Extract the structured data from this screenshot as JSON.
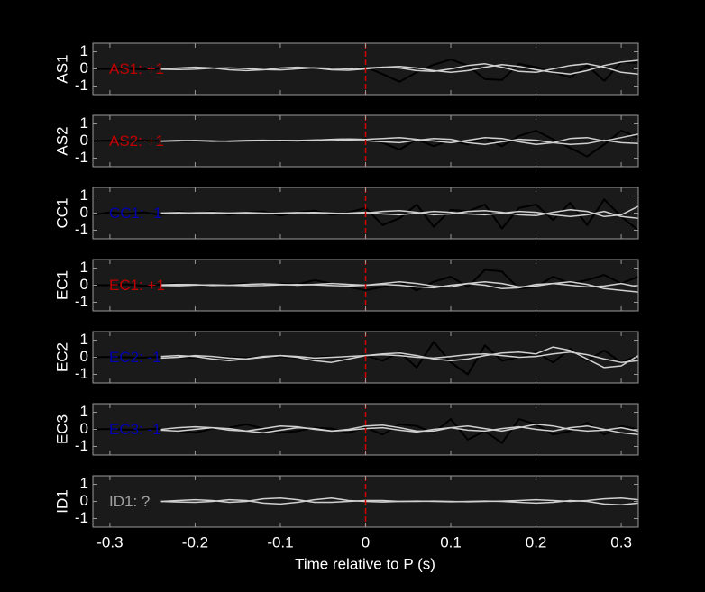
{
  "chart_data": {
    "type": "line",
    "xlabel": "Time relative to P (s)",
    "xlim": [
      -0.32,
      0.32
    ],
    "xticks": [
      -0.3,
      -0.2,
      -0.1,
      0,
      0.1,
      0.2,
      0.3
    ],
    "ylim": [
      -1.5,
      1.5
    ],
    "yticks": [
      -1,
      0,
      1
    ],
    "vline": {
      "x": 0,
      "color": "#d40000"
    },
    "x": [
      -0.32,
      -0.3,
      -0.28,
      -0.26,
      -0.24,
      -0.22,
      -0.2,
      -0.18,
      -0.16,
      -0.14,
      -0.12,
      -0.1,
      -0.08,
      -0.06,
      -0.04,
      -0.02,
      0,
      0.02,
      0.04,
      0.06,
      0.08,
      0.1,
      0.12,
      0.14,
      0.16,
      0.18,
      0.2,
      0.22,
      0.24,
      0.26,
      0.28,
      0.3,
      0.32
    ],
    "panels": [
      {
        "ylabel": "AS1",
        "label": "AS1: +1",
        "label_color": "#c00000",
        "series": [
          {
            "color": "#000000",
            "values": [
              0,
              0,
              0.02,
              -0.03,
              0.02,
              0.05,
              -0.03,
              0.04,
              0,
              -0.05,
              0.03,
              0.02,
              -0.04,
              0.03,
              0.05,
              -0.02,
              0.1,
              -0.3,
              -0.75,
              -0.2,
              0.25,
              0.55,
              0.2,
              -0.6,
              -0.65,
              0.3,
              0.1,
              -0.2,
              -0.5,
              0.2,
              -0.7,
              0.4,
              0.35
            ]
          },
          {
            "color": "#d0d0d0",
            "values": [
              null,
              null,
              null,
              null,
              0.02,
              0.05,
              0.1,
              0.05,
              -0.05,
              -0.1,
              -0.05,
              0.05,
              0.1,
              0.05,
              -0.05,
              -0.08,
              0,
              0.1,
              0.15,
              0.05,
              -0.1,
              -0.2,
              -0.1,
              0.1,
              0.25,
              0.15,
              -0.05,
              -0.2,
              -0.3,
              -0.1,
              0.2,
              0.4,
              0.5
            ]
          },
          {
            "color": "#d0d0d0",
            "values": [
              null,
              null,
              null,
              null,
              -0.02,
              -0.04,
              -0.02,
              0.04,
              0.06,
              0.02,
              -0.04,
              -0.06,
              0,
              0.06,
              0.04,
              0,
              0.05,
              0.1,
              0.05,
              -0.1,
              -0.15,
              0,
              0.2,
              0.3,
              0.1,
              -0.15,
              -0.2,
              0,
              0.2,
              0.3,
              0.1,
              -0.2,
              -0.3
            ]
          }
        ]
      },
      {
        "ylabel": "AS2",
        "label": "AS2: +1",
        "label_color": "#c00000",
        "series": [
          {
            "color": "#000000",
            "values": [
              0,
              0.02,
              -0.02,
              0.03,
              0,
              -0.03,
              0.02,
              0.04,
              0,
              -0.02,
              0.03,
              0,
              -0.03,
              0.04,
              0.1,
              0.05,
              0.15,
              -0.1,
              -0.5,
              0.1,
              -0.3,
              0.05,
              -0.2,
              0.2,
              -0.3,
              0.3,
              0.6,
              0.1,
              -0.4,
              -0.9,
              -0.2,
              0.6,
              0.2
            ]
          },
          {
            "color": "#d0d0d0",
            "values": [
              null,
              null,
              null,
              null,
              0,
              0.03,
              0.02,
              -0.02,
              0,
              0.03,
              0.05,
              0.02,
              0,
              0.05,
              0.1,
              0.12,
              0.1,
              0.15,
              0.2,
              0.1,
              0,
              -0.1,
              0.05,
              0.2,
              0.15,
              -0.05,
              -0.2,
              -0.1,
              0.15,
              0.2,
              0,
              0.2,
              0.4
            ]
          },
          {
            "color": "#d0d0d0",
            "values": [
              null,
              null,
              null,
              null,
              -0.02,
              0,
              0.03,
              0.01,
              -0.02,
              0,
              0.02,
              0.04,
              0.03,
              0.06,
              0.08,
              0.05,
              0.02,
              -0.05,
              -0.1,
              0.05,
              0.15,
              0.1,
              -0.1,
              -0.2,
              -0.05,
              0.1,
              0.05,
              -0.1,
              -0.2,
              -0.15,
              0.05,
              -0.1,
              -0.15
            ]
          }
        ]
      },
      {
        "ylabel": "CC1",
        "label": "CC1: -1",
        "label_color": "#0000b0",
        "series": [
          {
            "color": "#000000",
            "values": [
              -0.1,
              0.05,
              -0.05,
              0.05,
              -0.1,
              0.1,
              -0.05,
              0.1,
              -0.1,
              0.05,
              0.1,
              -0.15,
              0.05,
              0.15,
              -0.1,
              0.05,
              0.3,
              -0.7,
              -0.3,
              0.5,
              -0.8,
              0.2,
              0.1,
              0.5,
              -0.9,
              0.3,
              0.5,
              -0.4,
              0.6,
              -0.7,
              0.8,
              -0.2,
              -1
            ]
          },
          {
            "color": "#d0d0d0",
            "values": [
              null,
              null,
              null,
              null,
              0,
              0.03,
              0,
              -0.03,
              0,
              0.03,
              0,
              -0.02,
              0.02,
              0.04,
              0,
              -0.03,
              0,
              0.1,
              0.15,
              0.05,
              -0.1,
              -0.05,
              0.1,
              0.15,
              0.05,
              -0.1,
              -0.15,
              0.05,
              0.2,
              0.1,
              -0.2,
              -0.1,
              0.4
            ]
          },
          {
            "color": "#d0d0d0",
            "values": [
              null,
              null,
              null,
              null,
              0,
              -0.02,
              0.02,
              0.03,
              0,
              -0.02,
              -0.03,
              0,
              0.03,
              0,
              -0.02,
              0,
              0.05,
              -0.05,
              -0.1,
              0,
              0.1,
              0.05,
              -0.05,
              -0.1,
              0,
              0.1,
              0.05,
              -0.1,
              -0.2,
              -0.1,
              0.1,
              -0.2,
              -0.3
            ]
          }
        ]
      },
      {
        "ylabel": "EC1",
        "label": "EC1: +1",
        "label_color": "#c00000",
        "series": [
          {
            "color": "#000000",
            "values": [
              0,
              0,
              0.05,
              -0.05,
              0.03,
              0.1,
              -0.05,
              -0.1,
              0.05,
              0.1,
              -0.1,
              0.1,
              0.05,
              0.3,
              0.1,
              -0.1,
              -0.3,
              -0.1,
              0.2,
              -0.3,
              0.2,
              0.5,
              -0.1,
              0.9,
              0.8,
              -0.2,
              -0.1,
              0.5,
              0.1,
              0.3,
              0.6,
              0.1,
              0.5
            ]
          },
          {
            "color": "#d0d0d0",
            "values": [
              null,
              null,
              null,
              null,
              0.02,
              0.05,
              0.03,
              -0.02,
              0,
              0.05,
              0.08,
              0.05,
              0,
              0.05,
              0.1,
              0.05,
              0,
              0.1,
              0.2,
              0.1,
              -0.05,
              -0.1,
              0.1,
              0.2,
              0.1,
              -0.1,
              -0.05,
              0.1,
              0.2,
              0.05,
              -0.2,
              -0.3,
              -0.4
            ]
          },
          {
            "color": "#d0d0d0",
            "values": [
              null,
              null,
              null,
              null,
              -0.02,
              -0.03,
              0,
              0.02,
              0,
              -0.03,
              -0.02,
              0.02,
              0.04,
              0.02,
              -0.02,
              -0.05,
              0,
              0.05,
              0,
              -0.1,
              -0.15,
              0,
              0.1,
              0,
              -0.2,
              -0.15,
              0.05,
              0.1,
              0,
              -0.1,
              -0.05,
              0.1,
              -0.1
            ]
          }
        ]
      },
      {
        "ylabel": "EC2",
        "label": "EC2: -1",
        "label_color": "#0000b0",
        "series": [
          {
            "color": "#000000",
            "values": [
              0,
              0.02,
              0,
              -0.02,
              0.02,
              0,
              -0.02,
              0.03,
              0,
              -0.03,
              0.02,
              0.05,
              -0.05,
              0,
              0.05,
              0,
              0.1,
              -0.2,
              0.3,
              -0.6,
              0.9,
              -0.3,
              -1,
              0.7,
              -0.2,
              0,
              0.3,
              -0.3,
              0.5,
              -0.2,
              0.4,
              -0.3,
              0.1
            ]
          },
          {
            "color": "#d0d0d0",
            "values": [
              null,
              null,
              null,
              null,
              0.05,
              0.1,
              0.05,
              -0.1,
              -0.2,
              -0.1,
              0.05,
              0.1,
              0,
              -0.2,
              -0.3,
              -0.1,
              0.1,
              0.2,
              0.25,
              0.1,
              -0.1,
              -0.2,
              -0.1,
              0.1,
              0.25,
              0.3,
              0.2,
              0.6,
              0.4,
              -0.1,
              -0.6,
              -0.5,
              0.1
            ]
          },
          {
            "color": "#d0d0d0",
            "values": [
              null,
              null,
              null,
              null,
              -0.05,
              0,
              0.1,
              0.05,
              -0.05,
              -0.1,
              0,
              0.1,
              0.05,
              -0.05,
              0,
              0.05,
              0.1,
              0.15,
              0.1,
              0,
              -0.05,
              0.05,
              0.15,
              0.2,
              0.1,
              0,
              0.05,
              0.2,
              0.3,
              0.15,
              -0.1,
              -0.3,
              -0.2
            ]
          }
        ]
      },
      {
        "ylabel": "EC3",
        "label": "EC3: -1",
        "label_color": "#0000b0",
        "series": [
          {
            "color": "#000000",
            "values": [
              0,
              0.02,
              -0.02,
              0,
              0.05,
              -0.1,
              -0.2,
              0.05,
              0.1,
              0.3,
              0.05,
              -0.2,
              -0.1,
              0.1,
              0.05,
              -0.2,
              0.1,
              -0.3,
              0.3,
              0.2,
              -0.2,
              0.6,
              -0.6,
              -0.1,
              -0.8,
              0.6,
              0.3,
              -0.3,
              -0.1,
              0.4,
              -0.3,
              0.2,
              0
            ]
          },
          {
            "color": "#d0d0d0",
            "values": [
              null,
              null,
              null,
              null,
              0,
              0.1,
              0.15,
              0.1,
              -0.05,
              -0.1,
              0.05,
              0.2,
              0.15,
              0,
              -0.1,
              0,
              0.2,
              0.25,
              0.1,
              -0.1,
              -0.1,
              0.1,
              0.2,
              0.05,
              -0.1,
              0.1,
              0.3,
              0.2,
              0,
              -0.1,
              -0.05,
              0.1,
              -0.1
            ]
          },
          {
            "color": "#d0d0d0",
            "values": [
              null,
              null,
              null,
              null,
              -0.05,
              -0.1,
              0,
              0.1,
              0.05,
              -0.1,
              -0.2,
              -0.05,
              0.1,
              0.05,
              -0.1,
              -0.05,
              0.05,
              0.1,
              -0.05,
              -0.15,
              0,
              0.1,
              -0.05,
              -0.1,
              0.05,
              0.15,
              0,
              -0.1,
              0.1,
              0.2,
              0,
              -0.2,
              -0.3
            ]
          }
        ]
      },
      {
        "ylabel": "ID1",
        "label": "ID1: ?",
        "label_color": "#a0a0a0",
        "series": [
          {
            "color": "#d0d0d0",
            "values": [
              null,
              null,
              null,
              null,
              0,
              0.05,
              0.1,
              0.05,
              -0.05,
              0,
              0.15,
              0.2,
              0.1,
              -0.05,
              -0.05,
              0,
              0.05,
              0.05,
              0,
              0,
              0.02,
              0,
              -0.02,
              0,
              0.02,
              0.05,
              0.1,
              0.05,
              0,
              0.05,
              0.15,
              0.2,
              0.1
            ]
          },
          {
            "color": "#d0d0d0",
            "values": [
              null,
              null,
              null,
              null,
              0,
              -0.03,
              -0.05,
              0,
              0.1,
              0.05,
              -0.1,
              -0.15,
              -0.05,
              0.1,
              0.2,
              0.05,
              0,
              -0.03,
              0,
              0.02,
              0,
              -0.02,
              0,
              0.02,
              0,
              -0.05,
              -0.1,
              -0.05,
              0.05,
              0,
              -0.15,
              -0.2,
              -0.1
            ]
          }
        ]
      }
    ]
  }
}
